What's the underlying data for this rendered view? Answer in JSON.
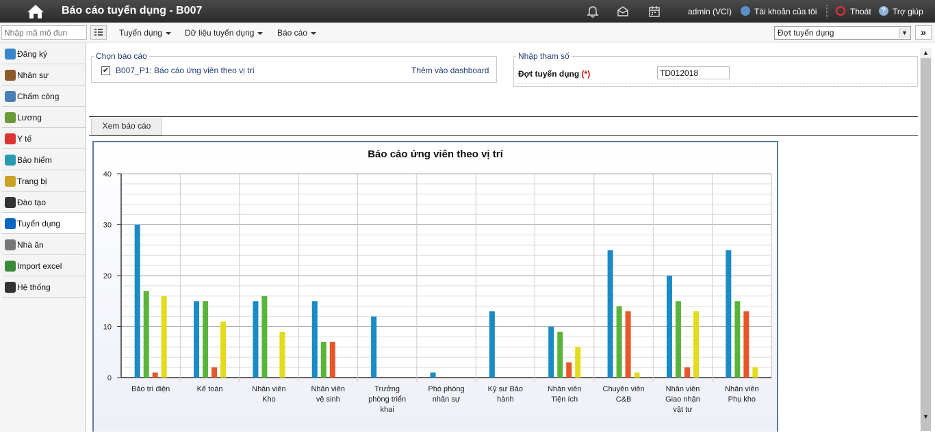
{
  "header": {
    "title": "Báo cáo tuyển dụng - B007",
    "user": "admin (VCI)",
    "account_label": "Tài khoản của tôi",
    "logout_label": "Thoát",
    "help_label": "Trợ giúp"
  },
  "menubar": {
    "module_placeholder": "Nhập mã mô đun",
    "menus": [
      "Tuyển dụng",
      "Dữ liệu tuyển dụng",
      "Báo cáo"
    ],
    "batch_select": "Đợt tuyển dụng"
  },
  "sidebar": {
    "items": [
      {
        "label": "Đăng ký",
        "icon": "register-icon",
        "color": "#3a86c8"
      },
      {
        "label": "Nhân sự",
        "icon": "people-icon",
        "color": "#8a5a2b"
      },
      {
        "label": "Chấm công",
        "icon": "timesheet-icon",
        "color": "#4a7fb5"
      },
      {
        "label": "Lương",
        "icon": "money-icon",
        "color": "#6a9a3a"
      },
      {
        "label": "Y tế",
        "icon": "medical-icon",
        "color": "#d33"
      },
      {
        "label": "Bảo hiểm",
        "icon": "insurance-icon",
        "color": "#2a9ab0"
      },
      {
        "label": "Trang bị",
        "icon": "equipment-icon",
        "color": "#c9a227"
      },
      {
        "label": "Đào tạo",
        "icon": "graduate-icon",
        "color": "#333"
      },
      {
        "label": "Tuyển dụng",
        "icon": "linkedin-icon",
        "color": "#0a66c2"
      },
      {
        "label": "Nhà ăn",
        "icon": "cutlery-icon",
        "color": "#777"
      },
      {
        "label": "Import excel",
        "icon": "excel-icon",
        "color": "#3a8a3a"
      },
      {
        "label": "Hệ thống",
        "icon": "windows-icon",
        "color": "#333"
      }
    ]
  },
  "report_select": {
    "legend": "Chọn báo cáo",
    "report_label": "B007_P1: Báo cáo ứng viên theo vị trí",
    "checked": "✔",
    "add_dashboard": "Thêm vào dashboard"
  },
  "params": {
    "legend": "Nhập tham số",
    "label": "Đợt tuyển dụng",
    "required_mark": "(*)",
    "value": "TD012018"
  },
  "tabs": {
    "view_report": "Xem báo cáo"
  },
  "chart_data": {
    "type": "bar",
    "title": "Báo cáo ứng viên theo vị trí",
    "xlabel": "",
    "ylabel": "",
    "ylim": [
      0,
      40
    ],
    "yticks": [
      0,
      10,
      20,
      30,
      40
    ],
    "grid": true,
    "categories": [
      "Bảo trì điện",
      "Kế toán",
      "Nhân viên Kho",
      "Nhân viên vệ sinh",
      "Trưởng phòng triển khai",
      "Phó phòng nhân sự",
      "Kỹ sư Bảo hành",
      "Nhân viên Tiện ích",
      "Chuyên viên C&B",
      "Nhân viên Giao nhận vật tư",
      "Nhân viên Phụ kho"
    ],
    "category_lines": [
      [
        "Bảo trì điện"
      ],
      [
        "Kế toán"
      ],
      [
        "Nhân viên",
        "Kho"
      ],
      [
        "Nhân viên",
        "vệ sinh"
      ],
      [
        "Trưởng",
        "phòng triển",
        "khai"
      ],
      [
        "Phó phòng",
        "nhân sự"
      ],
      [
        "Kỹ sư Bảo",
        "hành"
      ],
      [
        "Nhân viên",
        "Tiện ích"
      ],
      [
        "Chuyên viên",
        "C&B"
      ],
      [
        "Nhân viên",
        "Giao nhận",
        "vật tư"
      ],
      [
        "Nhân viên",
        "Phụ kho"
      ]
    ],
    "series": [
      {
        "color": "#1a8bc4",
        "values": [
          30,
          15,
          15,
          15,
          12,
          1,
          13,
          10,
          25,
          20,
          25
        ]
      },
      {
        "color": "#5ab43a",
        "values": [
          17,
          15,
          16,
          7,
          0,
          0,
          0,
          9,
          14,
          15,
          15
        ]
      },
      {
        "color": "#e8562a",
        "values": [
          1,
          2,
          0,
          7,
          0,
          0,
          0,
          3,
          13,
          2,
          13
        ]
      },
      {
        "color": "#e2dc1c",
        "values": [
          16,
          11,
          9,
          0,
          0,
          0,
          0,
          6,
          1,
          13,
          2
        ]
      }
    ]
  }
}
